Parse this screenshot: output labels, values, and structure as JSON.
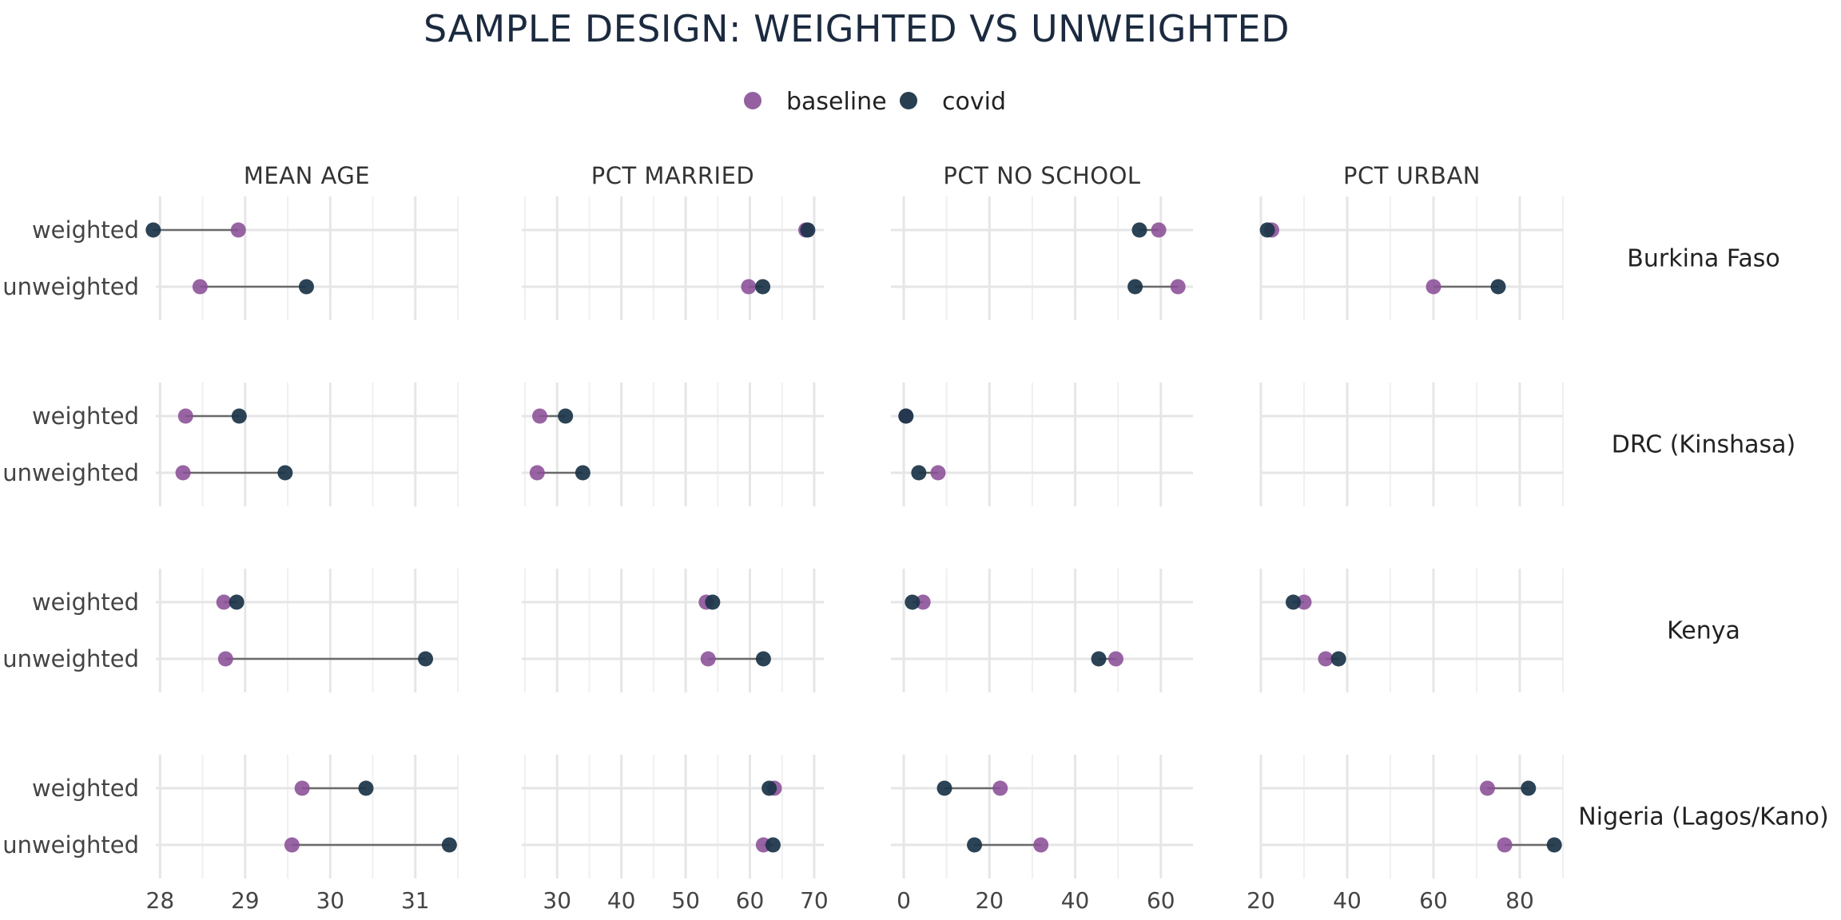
{
  "chart_data": {
    "type": "dumbbell",
    "title": "SAMPLE DESIGN: WEIGHTED VS UNWEIGHTED",
    "legend": {
      "position": "top",
      "items": [
        {
          "name": "baseline",
          "color": "#8a4f96"
        },
        {
          "name": "covid",
          "color": "#1c3549"
        }
      ]
    },
    "y_categories": [
      "weighted",
      "unweighted"
    ],
    "grid": true,
    "columns": [
      {
        "label": "MEAN AGE",
        "xlim": [
          27.95,
          31.5
        ],
        "ticks": [
          28,
          29,
          30,
          31
        ],
        "minor": [
          28.5,
          29.5,
          30.5,
          31.5
        ]
      },
      {
        "label": "PCT MARRIED",
        "xlim": [
          24.5,
          71.5
        ],
        "ticks": [
          30,
          40,
          50,
          60,
          70
        ],
        "minor": [
          25,
          35,
          45,
          55,
          65
        ]
      },
      {
        "label": "PCT NO SCHOOL",
        "xlim": [
          -3,
          67.5
        ],
        "ticks": [
          0,
          20,
          40,
          60
        ],
        "minor": [
          10,
          30,
          50
        ]
      },
      {
        "label": "PCT URBAN",
        "xlim": [
          20,
          90
        ],
        "ticks": [
          20,
          40,
          60,
          80
        ],
        "minor": [
          30,
          50,
          70,
          90
        ]
      }
    ],
    "rows": [
      {
        "label": "Burkina Faso",
        "cells": [
          {
            "weighted": [
              28.92,
              27.92
            ],
            "unweighted": [
              28.47,
              29.72
            ]
          },
          {
            "weighted": [
              68.7,
              69.0
            ],
            "unweighted": [
              59.8,
              62.0
            ]
          },
          {
            "weighted": [
              59.5,
              55.0
            ],
            "unweighted": [
              64.0,
              54.0
            ]
          },
          {
            "weighted": [
              22.5,
              21.5
            ],
            "unweighted": [
              60.0,
              75.0
            ]
          }
        ]
      },
      {
        "label": "DRC (Kinshasa)",
        "cells": [
          {
            "weighted": [
              28.3,
              28.93
            ],
            "unweighted": [
              28.27,
              29.47
            ]
          },
          {
            "weighted": [
              27.3,
              31.3
            ],
            "unweighted": [
              26.9,
              34.0
            ]
          },
          {
            "weighted": [
              0.5,
              0.5
            ],
            "unweighted": [
              8.0,
              3.5
            ]
          },
          null
        ]
      },
      {
        "label": "Kenya",
        "cells": [
          {
            "weighted": [
              28.75,
              28.9
            ],
            "unweighted": [
              28.77,
              31.12
            ]
          },
          {
            "weighted": [
              53.2,
              54.2
            ],
            "unweighted": [
              53.5,
              62.1
            ]
          },
          {
            "weighted": [
              4.5,
              2.0
            ],
            "unweighted": [
              49.5,
              45.5
            ]
          },
          {
            "weighted": [
              30.0,
              27.5
            ],
            "unweighted": [
              35.0,
              38.0
            ]
          }
        ]
      },
      {
        "label": "Nigeria (Lagos/Kano)",
        "cells": [
          {
            "weighted": [
              29.67,
              30.42
            ],
            "unweighted": [
              29.55,
              31.4
            ]
          },
          {
            "weighted": [
              63.8,
              63.0
            ],
            "unweighted": [
              62.1,
              63.6
            ]
          },
          {
            "weighted": [
              22.5,
              9.5
            ],
            "unweighted": [
              32.0,
              16.5
            ]
          },
          {
            "weighted": [
              72.5,
              82.0
            ],
            "unweighted": [
              76.5,
              88.0
            ]
          }
        ]
      }
    ]
  }
}
